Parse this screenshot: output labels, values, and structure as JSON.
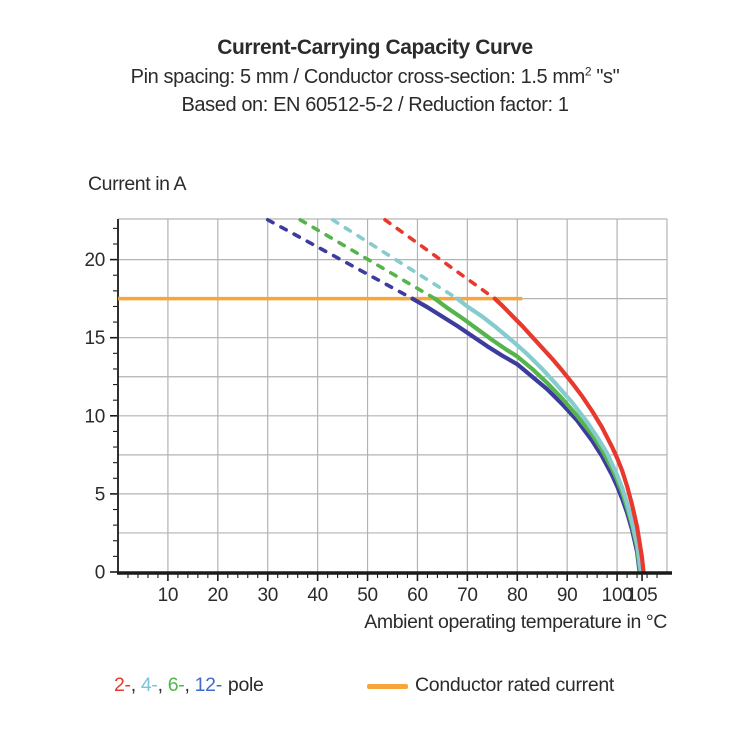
{
  "header": {
    "title": "Current-Carrying Capacity Curve",
    "subtitle1_main": "Pin spacing: 5 mm / Conductor cross-section: 1.5 mm",
    "subtitle1_sup": "2",
    "subtitle1_tail": " \"s\"",
    "subtitle2": "Based on: EN 60512-5-2 / Reduction factor: 1"
  },
  "chart_data": {
    "type": "line",
    "title": "Current-Carrying Capacity Curve",
    "xlabel": "Ambient operating temperature in °C",
    "ylabel": "Current in A",
    "xlim": [
      0,
      110
    ],
    "ylim": [
      0,
      22.6
    ],
    "x_ticks": [
      10,
      20,
      30,
      40,
      50,
      60,
      70,
      80,
      90,
      100,
      105
    ],
    "y_ticks": [
      0,
      5,
      10,
      15,
      20
    ],
    "x_minor_step": 2,
    "y_minor_step": 1,
    "grid": {
      "x_step": 10,
      "y_step": 2.5,
      "color": "#b3b3b3",
      "on": true
    },
    "axis_color": "#1a1a1a",
    "rated_current": {
      "label": "Conductor rated current",
      "value": 17.5,
      "x_start": 0,
      "x_end": 81,
      "color": "#f7a63c"
    },
    "series": [
      {
        "name": "12-pole",
        "color": "#3c3c9e",
        "dashed": [
          [
            30,
            22.55
          ],
          [
            59,
            17.5
          ]
        ],
        "solid": [
          [
            59,
            17.5
          ],
          [
            62,
            16.95
          ],
          [
            65,
            16.35
          ],
          [
            68,
            15.75
          ],
          [
            71,
            15.1
          ],
          [
            74,
            14.45
          ],
          [
            77,
            13.85
          ],
          [
            80,
            13.3
          ],
          [
            83,
            12.5
          ],
          [
            86,
            11.7
          ],
          [
            89,
            10.75
          ],
          [
            92,
            9.7
          ],
          [
            95,
            8.4
          ],
          [
            97,
            7.4
          ],
          [
            99,
            6.2
          ],
          [
            100,
            5.5
          ],
          [
            101,
            4.7
          ],
          [
            102,
            3.8
          ],
          [
            103,
            2.7
          ],
          [
            104,
            1.3
          ],
          [
            104.5,
            0
          ]
        ]
      },
      {
        "name": "6-pole",
        "color": "#56b44c",
        "dashed": [
          [
            36.5,
            22.55
          ],
          [
            63.5,
            17.5
          ]
        ],
        "solid": [
          [
            63.5,
            17.5
          ],
          [
            66,
            16.9
          ],
          [
            69,
            16.25
          ],
          [
            72,
            15.55
          ],
          [
            75,
            14.85
          ],
          [
            78,
            14.2
          ],
          [
            80,
            13.8
          ],
          [
            83,
            13.0
          ],
          [
            86,
            12.1
          ],
          [
            89,
            11.1
          ],
          [
            92,
            10.0
          ],
          [
            95,
            8.8
          ],
          [
            97,
            7.8
          ],
          [
            99,
            6.6
          ],
          [
            100,
            5.9
          ],
          [
            101,
            5.1
          ],
          [
            102,
            4.1
          ],
          [
            103,
            3.0
          ],
          [
            104,
            1.6
          ],
          [
            104.6,
            0
          ]
        ]
      },
      {
        "name": "4-pole",
        "color": "#86cbce",
        "dashed": [
          [
            43,
            22.55
          ],
          [
            68,
            17.5
          ]
        ],
        "solid": [
          [
            68,
            17.5
          ],
          [
            70,
            17.0
          ],
          [
            73,
            16.35
          ],
          [
            76,
            15.6
          ],
          [
            79,
            14.8
          ],
          [
            82,
            13.95
          ],
          [
            85,
            13.0
          ],
          [
            88,
            11.95
          ],
          [
            91,
            10.85
          ],
          [
            94,
            9.6
          ],
          [
            96,
            8.65
          ],
          [
            98,
            7.6
          ],
          [
            100,
            6.2
          ],
          [
            101,
            5.4
          ],
          [
            102,
            4.4
          ],
          [
            103,
            3.2
          ],
          [
            104,
            1.8
          ],
          [
            104.8,
            0
          ]
        ]
      },
      {
        "name": "2-pole",
        "color": "#e8392f",
        "dashed": [
          [
            53.5,
            22.55
          ],
          [
            75.5,
            17.5
          ]
        ],
        "solid": [
          [
            75.5,
            17.5
          ],
          [
            77,
            17.05
          ],
          [
            79,
            16.4
          ],
          [
            81,
            15.75
          ],
          [
            83,
            15.05
          ],
          [
            85,
            14.35
          ],
          [
            87,
            13.65
          ],
          [
            89,
            12.9
          ],
          [
            91,
            12.1
          ],
          [
            93,
            11.25
          ],
          [
            95,
            10.3
          ],
          [
            97,
            9.25
          ],
          [
            99,
            8.0
          ],
          [
            100,
            7.3
          ],
          [
            101,
            6.5
          ],
          [
            102,
            5.5
          ],
          [
            103,
            4.3
          ],
          [
            104,
            2.9
          ],
          [
            105,
            0.9
          ],
          [
            105.3,
            0
          ]
        ]
      }
    ]
  },
  "legend": {
    "poles": [
      {
        "label": "2-",
        "color": "#e8392f"
      },
      {
        "label": "4-",
        "color": "#79c3dd"
      },
      {
        "label": "6-",
        "color": "#4db848"
      },
      {
        "label": "12-",
        "color": "#3e6bc9"
      }
    ],
    "separator": ",",
    "suffix": "pole",
    "rated_label": "Conductor rated current"
  }
}
